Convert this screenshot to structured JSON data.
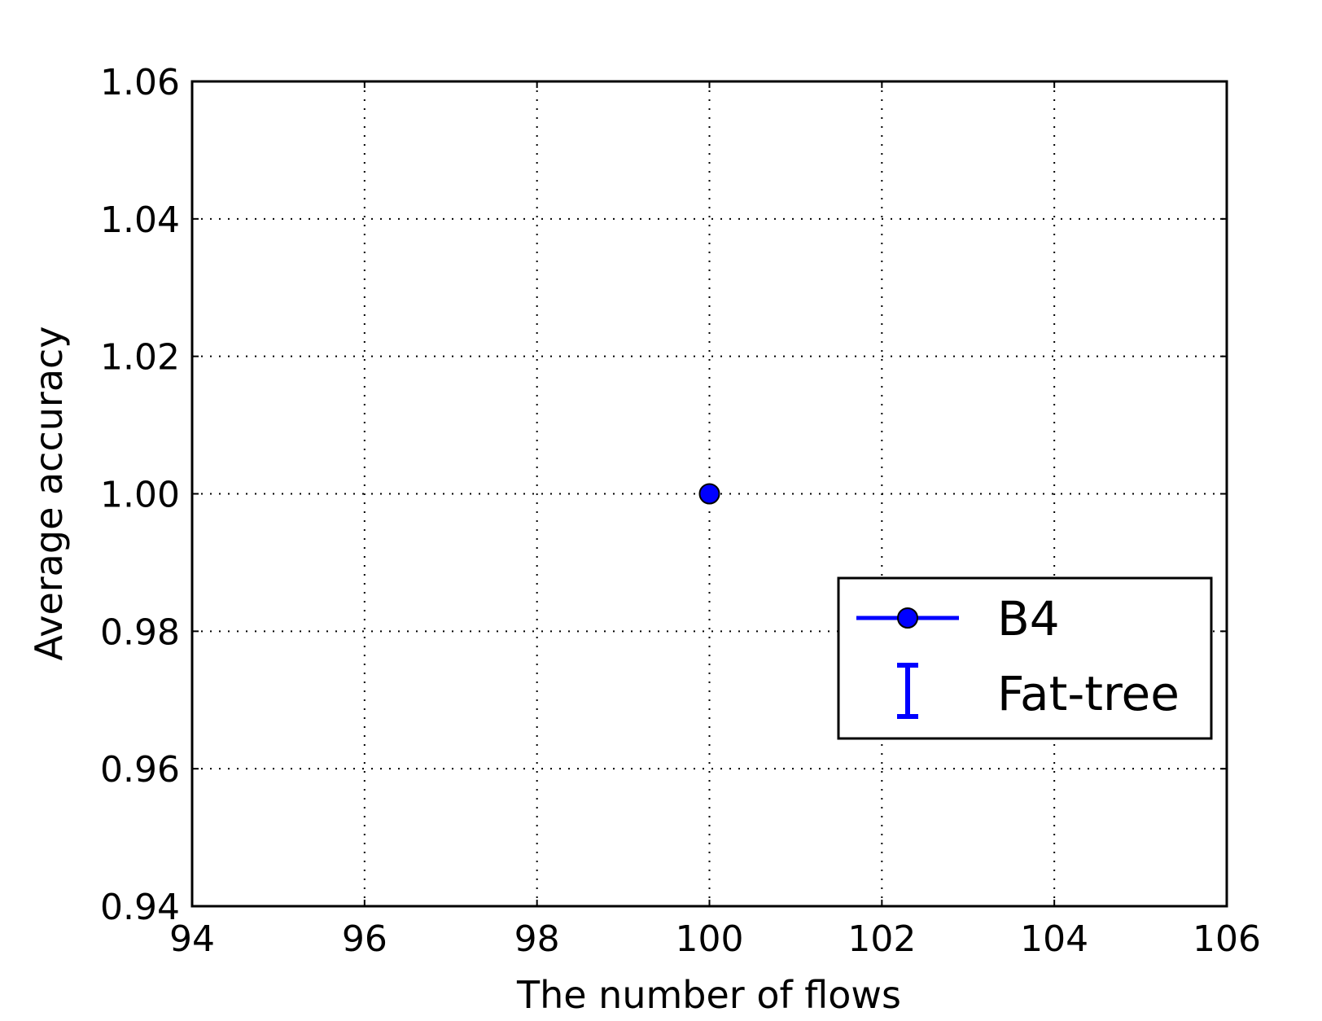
{
  "chart_data": {
    "type": "line",
    "title": "",
    "xlabel": "The number of flows",
    "ylabel": "Average accuracy",
    "xlim": [
      94,
      106
    ],
    "ylim": [
      0.94,
      1.06
    ],
    "x_ticks": [
      94,
      96,
      98,
      100,
      102,
      104,
      106
    ],
    "x_tick_labels": [
      "94",
      "96",
      "98",
      "100",
      "102",
      "104",
      "106"
    ],
    "y_ticks": [
      0.94,
      0.96,
      0.98,
      1.0,
      1.02,
      1.04,
      1.06
    ],
    "y_tick_labels": [
      "0.94",
      "0.96",
      "0.98",
      "1.00",
      "1.02",
      "1.04",
      "1.06"
    ],
    "grid": true,
    "legend_position": "center-right",
    "series": [
      {
        "name": "B4",
        "marker": "circle",
        "color": "#0000ff",
        "x": [
          100
        ],
        "y": [
          1.0
        ],
        "yerr": [
          0.0
        ]
      }
    ],
    "legend": [
      {
        "label": "B4",
        "style": "line-marker",
        "color": "#0000ff"
      },
      {
        "label": "Fat-tree",
        "style": "errorbar",
        "color": "#0000ff"
      }
    ]
  }
}
